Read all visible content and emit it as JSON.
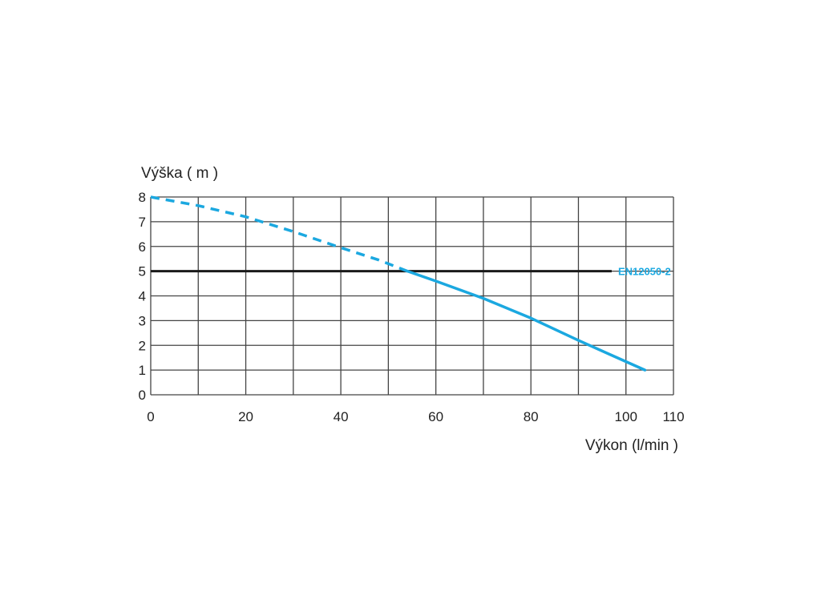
{
  "chart_data": {
    "type": "line",
    "ylabel": "Výška ( m )",
    "xlabel": "Výkon (l/min )",
    "xlim": [
      0,
      110
    ],
    "ylim": [
      0,
      8
    ],
    "x_ticks": [
      "0",
      "20",
      "40",
      "60",
      "80",
      "100",
      "110"
    ],
    "x_tick_values": [
      0,
      20,
      40,
      60,
      80,
      100,
      110
    ],
    "y_ticks": [
      "0",
      "1",
      "2",
      "3",
      "4",
      "5",
      "6",
      "7",
      "8"
    ],
    "y_tick_values": [
      0,
      1,
      2,
      3,
      4,
      5,
      6,
      7,
      8
    ],
    "grid": true,
    "grid_x_step": 10,
    "grid_y_step": 1,
    "series": [
      {
        "style": "dashed",
        "color": "#1ba8e0",
        "x": [
          0,
          10,
          20,
          30,
          40,
          48,
          54
        ],
        "y": [
          8.0,
          7.65,
          7.2,
          6.6,
          5.95,
          5.45,
          5.0
        ]
      },
      {
        "style": "solid",
        "color": "#1ba8e0",
        "x": [
          54,
          60,
          70,
          80,
          90,
          97,
          104
        ],
        "y": [
          5.0,
          4.6,
          3.9,
          3.1,
          2.2,
          1.6,
          1.0
        ]
      }
    ],
    "reference_line": {
      "label": "EN12050-2",
      "y": 5,
      "x_start": 0,
      "x_end": 97,
      "color": "#1a1a1a",
      "label_color": "#1ba8e0"
    }
  }
}
